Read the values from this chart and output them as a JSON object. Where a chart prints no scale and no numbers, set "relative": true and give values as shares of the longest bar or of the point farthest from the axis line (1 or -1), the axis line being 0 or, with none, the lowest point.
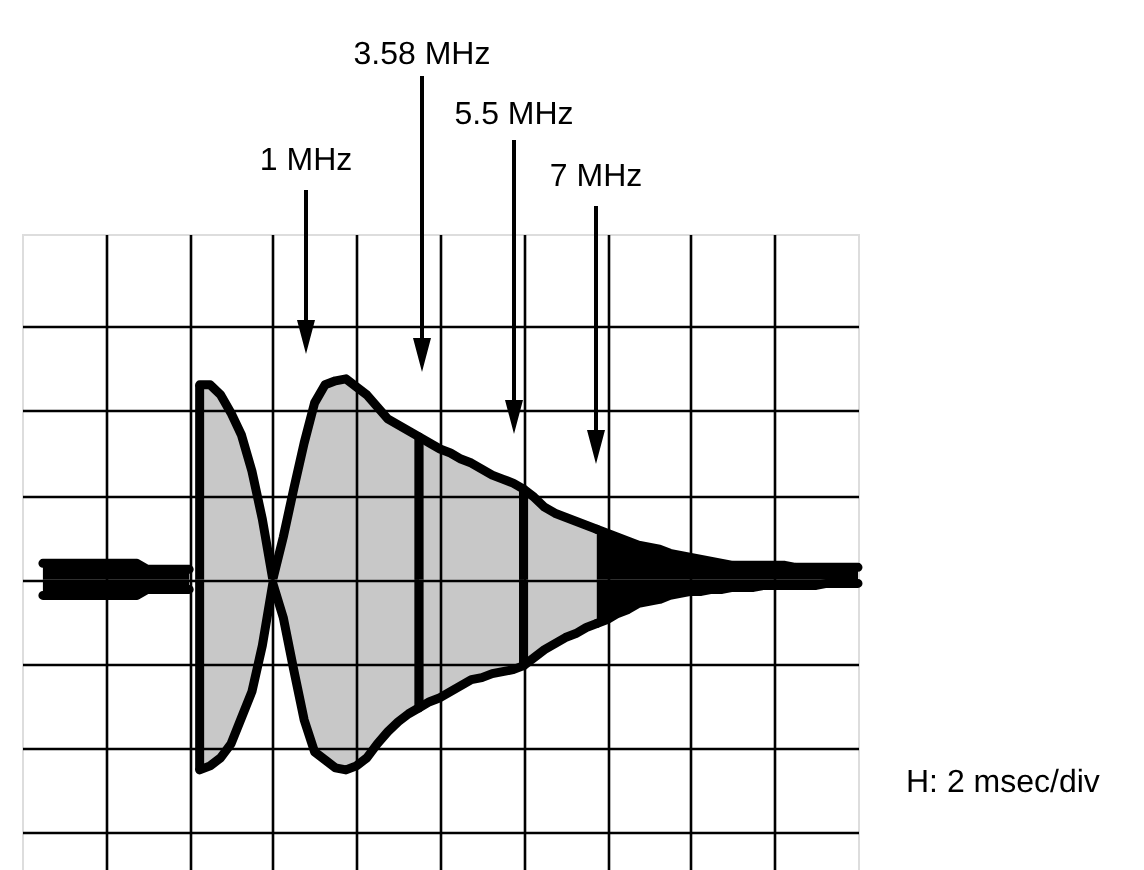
{
  "chart_data": {
    "type": "area",
    "relative": true,
    "grid": true,
    "categories": [
      null,
      null,
      null,
      null,
      null,
      null,
      null,
      null,
      null,
      null,
      null,
      null,
      null,
      null,
      null,
      null,
      null,
      null,
      null,
      null,
      null,
      null,
      null,
      null,
      null,
      null,
      null,
      null,
      null,
      null,
      null,
      null,
      null,
      null,
      null,
      null,
      null,
      null,
      null,
      null,
      null,
      null,
      null,
      null,
      null,
      null,
      null,
      null,
      null,
      null,
      null,
      null,
      null,
      null,
      null,
      null,
      null,
      null,
      null,
      null,
      null,
      null,
      null,
      null,
      null,
      null,
      null,
      null,
      null,
      null,
      null,
      null,
      null,
      null,
      null,
      null,
      null,
      null,
      null,
      null,
      null
    ],
    "annotations": [
      "1 MHz",
      "3.58 MHz",
      "5.5 MHz",
      "7 MHz",
      "H: 2 msec/div"
    ],
    "series": [
      {
        "color": "#000000",
        "values": [
          null,
          null,
          0.08,
          0.08,
          0.08,
          0.08,
          0.08,
          0.08,
          0.08,
          0.08,
          0.08,
          0.08,
          0.05,
          0.05,
          0.05,
          0.05,
          0.05,
          null,
          null,
          null,
          null,
          null,
          null,
          null,
          null,
          null,
          null,
          null,
          null,
          null,
          null,
          null,
          null,
          null,
          null,
          null,
          null,
          null,
          null,
          null,
          null,
          null,
          null,
          null,
          null,
          null,
          null,
          null,
          null,
          null,
          null,
          null,
          null,
          null,
          null,
          null,
          null,
          null,
          null,
          null,
          null,
          null,
          null,
          null,
          null,
          null,
          null,
          null,
          null,
          null,
          null,
          null,
          null,
          null,
          null,
          null,
          null,
          null,
          null,
          null,
          null
        ]
      },
      {
        "color": "#000000",
        "values": [
          null,
          null,
          -0.08,
          -0.08,
          -0.08,
          -0.08,
          -0.08,
          -0.08,
          -0.08,
          -0.08,
          -0.08,
          -0.08,
          -0.05,
          -0.05,
          -0.05,
          -0.05,
          -0.05,
          null,
          null,
          null,
          null,
          null,
          null,
          null,
          null,
          null,
          null,
          null,
          null,
          null,
          null,
          null,
          null,
          null,
          null,
          null,
          null,
          null,
          null,
          null,
          null,
          null,
          null,
          null,
          null,
          null,
          null,
          null,
          null,
          null,
          null,
          null,
          null,
          null,
          null,
          null,
          null,
          null,
          null,
          null,
          null,
          null,
          null,
          null,
          null,
          null,
          null,
          null,
          null,
          null,
          null,
          null,
          null,
          null,
          null,
          null,
          null,
          null,
          null,
          null,
          null
        ]
      },
      {
        "color": "#c8c8c8",
        "values": [
          null,
          null,
          null,
          null,
          null,
          null,
          null,
          null,
          null,
          null,
          null,
          null,
          null,
          null,
          null,
          null,
          null,
          0.97,
          0.97,
          0.92,
          0.83,
          0.72,
          0.54,
          0.3,
          0,
          0.21,
          0.45,
          0.68,
          0.88,
          0.97,
          0.99,
          1.0,
          0.96,
          0.92,
          0.86,
          0.8,
          0.77,
          0.74,
          0.71,
          null,
          null,
          null,
          null,
          null,
          null,
          null,
          null,
          null,
          null,
          null,
          null,
          null,
          null,
          null,
          null,
          null,
          null,
          null,
          null,
          null,
          null,
          null,
          null,
          null,
          null,
          null,
          null,
          null,
          null,
          null,
          null,
          null,
          null,
          null,
          null,
          null,
          null,
          null,
          null,
          null,
          null
        ]
      },
      {
        "color": "#c8c8c8",
        "values": [
          null,
          null,
          null,
          null,
          null,
          null,
          null,
          null,
          null,
          null,
          null,
          null,
          null,
          null,
          null,
          null,
          null,
          -0.95,
          -0.93,
          -0.89,
          -0.82,
          -0.69,
          -0.56,
          -0.33,
          -0.02,
          -0.19,
          -0.45,
          -0.7,
          -0.86,
          -0.9,
          -0.94,
          -0.95,
          -0.93,
          -0.89,
          -0.82,
          -0.76,
          -0.71,
          -0.67,
          -0.64,
          null,
          null,
          null,
          null,
          null,
          null,
          null,
          null,
          null,
          null,
          null,
          null,
          null,
          null,
          null,
          null,
          null,
          null,
          null,
          null,
          null,
          null,
          null,
          null,
          null,
          null,
          null,
          null,
          null,
          null,
          null,
          null,
          null,
          null,
          null,
          null,
          null,
          null,
          null,
          null,
          null,
          null
        ]
      },
      {
        "color": "#c8c8c8",
        "values": [
          null,
          null,
          null,
          null,
          null,
          null,
          null,
          null,
          null,
          null,
          null,
          null,
          null,
          null,
          null,
          null,
          null,
          null,
          null,
          null,
          null,
          null,
          null,
          null,
          null,
          null,
          null,
          null,
          null,
          null,
          null,
          null,
          null,
          null,
          null,
          null,
          null,
          null,
          0.71,
          0.68,
          0.65,
          0.63,
          0.6,
          0.58,
          0.55,
          0.52,
          0.5,
          0.48,
          0.45,
          null,
          null,
          null,
          null,
          null,
          null,
          null,
          null,
          null,
          null,
          null,
          null,
          null,
          null,
          null,
          null,
          null,
          null,
          null,
          null,
          null,
          null,
          null,
          null,
          null,
          null,
          null,
          null,
          null,
          null,
          null,
          null
        ]
      },
      {
        "color": "#c8c8c8",
        "values": [
          null,
          null,
          null,
          null,
          null,
          null,
          null,
          null,
          null,
          null,
          null,
          null,
          null,
          null,
          null,
          null,
          null,
          null,
          null,
          null,
          null,
          null,
          null,
          null,
          null,
          null,
          null,
          null,
          null,
          null,
          null,
          null,
          null,
          null,
          null,
          null,
          null,
          null,
          -0.64,
          -0.61,
          -0.59,
          -0.56,
          -0.53,
          -0.5,
          -0.49,
          -0.47,
          -0.46,
          -0.45,
          -0.43,
          null,
          null,
          null,
          null,
          null,
          null,
          null,
          null,
          null,
          null,
          null,
          null,
          null,
          null,
          null,
          null,
          null,
          null,
          null,
          null,
          null,
          null,
          null,
          null,
          null,
          null,
          null,
          null,
          null,
          null,
          null,
          null
        ]
      },
      {
        "color": "#c8c8c8",
        "values": [
          null,
          null,
          null,
          null,
          null,
          null,
          null,
          null,
          null,
          null,
          null,
          null,
          null,
          null,
          null,
          null,
          null,
          null,
          null,
          null,
          null,
          null,
          null,
          null,
          null,
          null,
          null,
          null,
          null,
          null,
          null,
          null,
          null,
          null,
          null,
          null,
          null,
          null,
          null,
          null,
          null,
          null,
          null,
          null,
          null,
          null,
          null,
          null,
          0.45,
          0.41,
          0.36,
          0.33,
          0.31,
          0.29,
          0.27,
          0.25,
          null,
          null,
          null,
          null,
          null,
          null,
          null,
          null,
          null,
          null,
          null,
          null,
          null,
          null,
          null,
          null,
          null,
          null,
          null,
          null,
          null,
          null,
          null,
          null,
          null
        ]
      },
      {
        "color": "#c8c8c8",
        "values": [
          null,
          null,
          null,
          null,
          null,
          null,
          null,
          null,
          null,
          null,
          null,
          null,
          null,
          null,
          null,
          null,
          null,
          null,
          null,
          null,
          null,
          null,
          null,
          null,
          null,
          null,
          null,
          null,
          null,
          null,
          null,
          null,
          null,
          null,
          null,
          null,
          null,
          null,
          null,
          null,
          null,
          null,
          null,
          null,
          null,
          null,
          null,
          null,
          -0.43,
          -0.39,
          -0.35,
          -0.32,
          -0.29,
          -0.27,
          -0.24,
          -0.22,
          null,
          null,
          null,
          null,
          null,
          null,
          null,
          null,
          null,
          null,
          null,
          null,
          null,
          null,
          null,
          null,
          null,
          null,
          null,
          null,
          null,
          null,
          null,
          null,
          null
        ]
      },
      {
        "color": "#000000",
        "values": [
          null,
          null,
          null,
          null,
          null,
          null,
          null,
          null,
          null,
          null,
          null,
          null,
          null,
          null,
          null,
          null,
          null,
          null,
          null,
          null,
          null,
          null,
          null,
          null,
          null,
          null,
          null,
          null,
          null,
          null,
          null,
          null,
          null,
          null,
          null,
          null,
          null,
          null,
          null,
          null,
          null,
          null,
          null,
          null,
          null,
          null,
          null,
          null,
          null,
          null,
          null,
          null,
          null,
          null,
          null,
          0.25,
          0.23,
          0.21,
          0.19,
          0.17,
          0.16,
          0.15,
          0.13,
          0.12,
          0.11,
          0.1,
          0.09,
          0.08,
          0.07,
          0.07,
          0.07,
          0.07,
          0.07,
          0.07,
          0.06,
          0.06,
          0.06,
          0.06,
          0.06,
          0.06,
          0.06
        ]
      },
      {
        "color": "#000000",
        "values": [
          null,
          null,
          null,
          null,
          null,
          null,
          null,
          null,
          null,
          null,
          null,
          null,
          null,
          null,
          null,
          null,
          null,
          null,
          null,
          null,
          null,
          null,
          null,
          null,
          null,
          null,
          null,
          null,
          null,
          null,
          null,
          null,
          null,
          null,
          null,
          null,
          null,
          null,
          null,
          null,
          null,
          null,
          null,
          null,
          null,
          null,
          null,
          null,
          null,
          null,
          null,
          null,
          null,
          null,
          null,
          -0.22,
          -0.2,
          -0.17,
          -0.15,
          -0.12,
          -0.11,
          -0.1,
          -0.08,
          -0.07,
          -0.06,
          -0.06,
          -0.05,
          -0.05,
          -0.04,
          -0.04,
          -0.04,
          -0.03,
          -0.03,
          -0.03,
          -0.03,
          -0.03,
          -0.03,
          -0.02,
          -0.02,
          -0.02,
          -0.02
        ]
      }
    ]
  }
}
